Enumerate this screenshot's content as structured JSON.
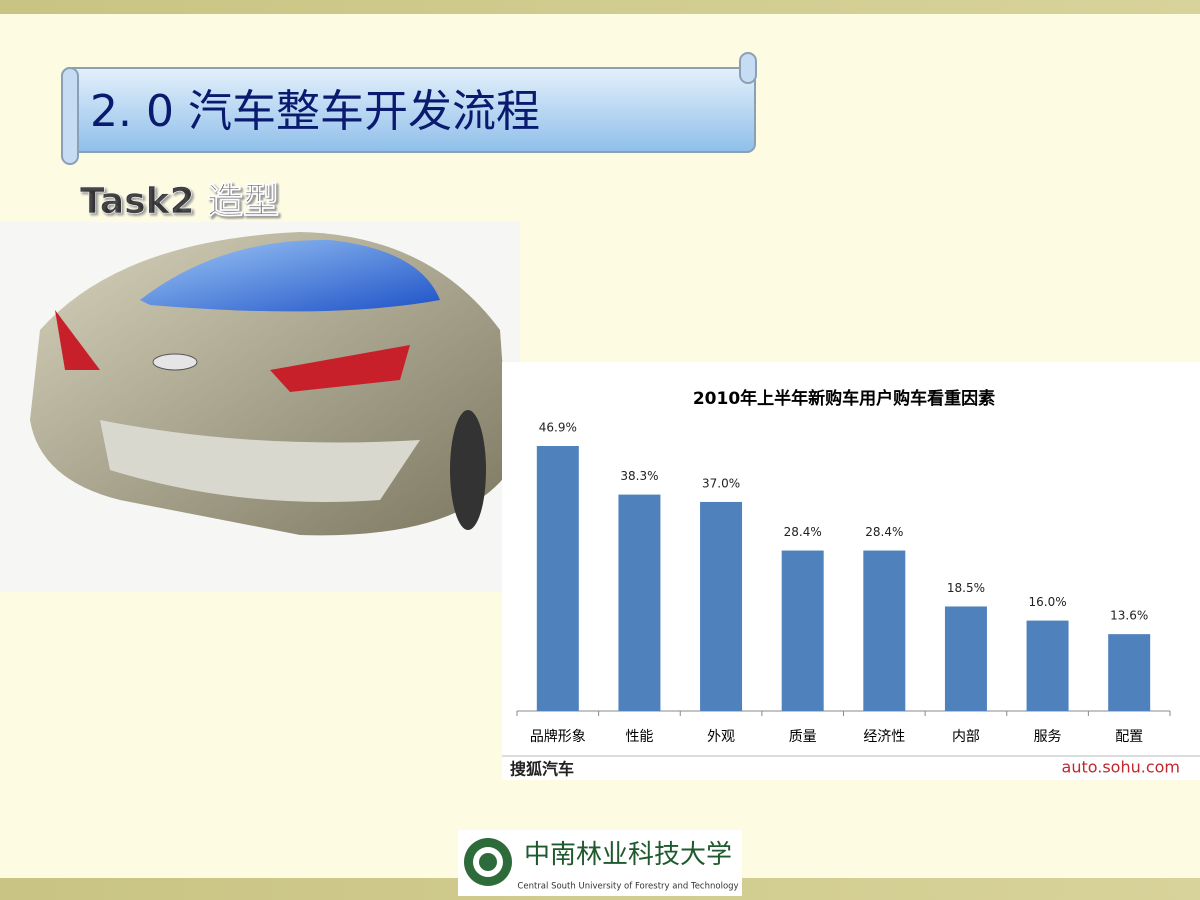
{
  "slide": {
    "title": "2. 0  汽车整车开发流程",
    "subtitle": "Task2  造型",
    "logo_name": "中南林业科技大学",
    "logo_english": "Central South University of Forestry and Technology"
  },
  "chart_data": {
    "type": "bar",
    "title": "2010年上半年新购车用户购车看重因素",
    "categories": [
      "品牌形象",
      "性能",
      "外观",
      "质量",
      "经济性",
      "内部",
      "服务",
      "配置"
    ],
    "values": [
      46.9,
      38.3,
      37.0,
      28.4,
      28.4,
      18.5,
      16.0,
      13.6
    ],
    "value_labels": [
      "46.9%",
      "38.3%",
      "37.0%",
      "28.4%",
      "28.4%",
      "18.5%",
      "16.0%",
      "13.6%"
    ],
    "color": "#4f81bd",
    "source": "搜狐汽车",
    "source_url": "auto.sohu.com"
  }
}
